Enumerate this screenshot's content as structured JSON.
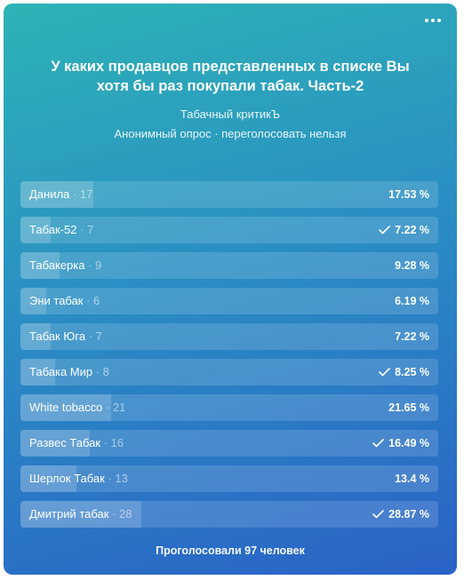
{
  "poll": {
    "title": "У каких продавцов представленных в списке Вы хотя бы раз покупали табак. Часть-2",
    "author": "Табачный критикЪ",
    "meta": "Анонимный опрос · переголосовать нельзя",
    "footer": "Проголосовали 97 человек",
    "more_icon": "more-horizontal-icon",
    "check_icon": "checkmark-icon",
    "options": [
      {
        "label": "Данила",
        "count": " · 17",
        "percent": "17.53 %",
        "share": 17.53,
        "voted": false
      },
      {
        "label": "Табак-52",
        "count": " · 7",
        "percent": "7.22 %",
        "share": 7.22,
        "voted": true
      },
      {
        "label": "Табакерка",
        "count": " · 9",
        "percent": "9.28 %",
        "share": 9.28,
        "voted": false
      },
      {
        "label": "Эни табак",
        "count": " · 6",
        "percent": "6.19 %",
        "share": 6.19,
        "voted": false
      },
      {
        "label": "Табак Юга",
        "count": " · 7",
        "percent": "7.22 %",
        "share": 7.22,
        "voted": false
      },
      {
        "label": "Табака Мир",
        "count": " · 8",
        "percent": "8.25 %",
        "share": 8.25,
        "voted": true
      },
      {
        "label": "White tobacco",
        "count": " · 21",
        "percent": "21.65 %",
        "share": 21.65,
        "voted": false
      },
      {
        "label": "Развес Табак",
        "count": " · 16",
        "percent": "16.49 %",
        "share": 16.49,
        "voted": true
      },
      {
        "label": "Шерлок Табак",
        "count": " · 13",
        "percent": "13.4 %",
        "share": 13.4,
        "voted": false
      },
      {
        "label": "Дмитрий табак",
        "count": " · 28",
        "percent": "28.87 %",
        "share": 28.87,
        "voted": true
      }
    ]
  }
}
